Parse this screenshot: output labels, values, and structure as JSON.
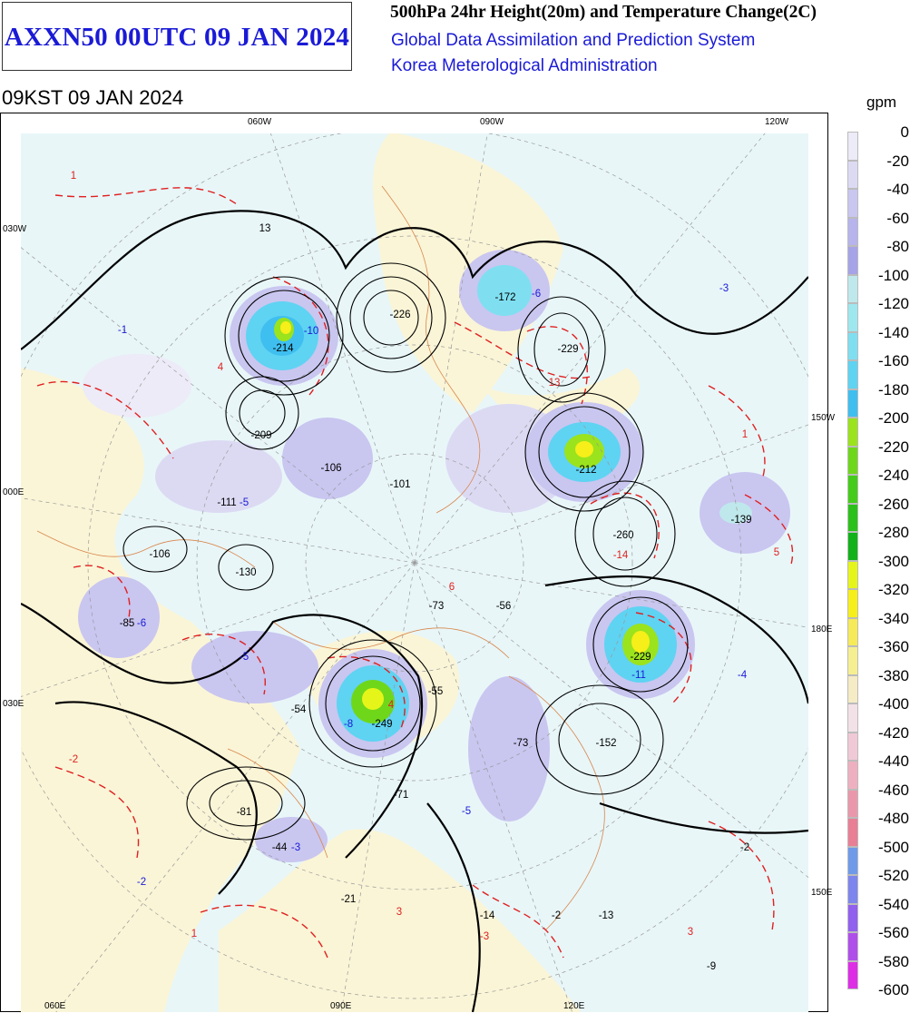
{
  "header": {
    "product_title": "AXXN50 00UTC 09 JAN 2024",
    "chart_title": "500hPa 24hr Height(20m) and Temperature Change(2C)",
    "system_name": "Global Data Assimilation and Prediction System",
    "agency": "Korea Meterological Administration",
    "valid_time": "09KST 09 JAN 2024"
  },
  "colorbar": {
    "unit": "gpm",
    "ticks": [
      "0",
      "-20",
      "-40",
      "-60",
      "-80",
      "-100",
      "-120",
      "-140",
      "-160",
      "-180",
      "-200",
      "-220",
      "-240",
      "-260",
      "-280",
      "-300",
      "-320",
      "-340",
      "-360",
      "-380",
      "-400",
      "-420",
      "-440",
      "-460",
      "-480",
      "-500",
      "-520",
      "-540",
      "-560",
      "-580",
      "-600"
    ],
    "colors": [
      "#ecebf7",
      "#dcdaf3",
      "#c9c6f0",
      "#b7b3ec",
      "#a7a3e8",
      "#bfe8ec",
      "#9fe7ee",
      "#7fdff0",
      "#5fd3f2",
      "#3fbff0",
      "#9be31c",
      "#6fd71a",
      "#45cc1a",
      "#2bc11a",
      "#11b21a",
      "#e6f519",
      "#f6ef1a",
      "#f6ea58",
      "#f6ef92",
      "#f5ebc5",
      "#f3e1e8",
      "#f0c9d6",
      "#eeb0c1",
      "#eb97ab",
      "#e87f95",
      "#6f9ae9",
      "#7d86ec",
      "#9160ee",
      "#b04eea",
      "#dd2ee6"
    ]
  },
  "map": {
    "longitude_labels": {
      "top": [
        "060W",
        "090W",
        "120W"
      ],
      "bottom": [
        "060E",
        "090E",
        "120E"
      ],
      "left": [
        "030W",
        "000E",
        "030E"
      ],
      "right": [
        "150W",
        "180E",
        "150E"
      ]
    },
    "height_change_centers": [
      "-214",
      "-209",
      "-226",
      "-172",
      "-229",
      "-212",
      "-106",
      "-111",
      "-101",
      "-106",
      "-130",
      "-260",
      "-139",
      "-85",
      "-73",
      "-56",
      "-229",
      "-54",
      "-55",
      "-249",
      "-73",
      "-152",
      "-81",
      "-71",
      "-44",
      "-21",
      "-14",
      "-2",
      "-13",
      "-2",
      "-9",
      "13"
    ],
    "temperature_change_centers": [
      "1",
      "-1",
      "-10",
      "4",
      "13",
      "-6",
      "-3",
      "1",
      "-5",
      "6",
      "-14",
      "5",
      "-6",
      "-5",
      "-11",
      "-4",
      "-8",
      "4",
      "-2",
      "-5",
      "-3",
      "-2",
      "3",
      "3",
      "1",
      "-3"
    ]
  }
}
